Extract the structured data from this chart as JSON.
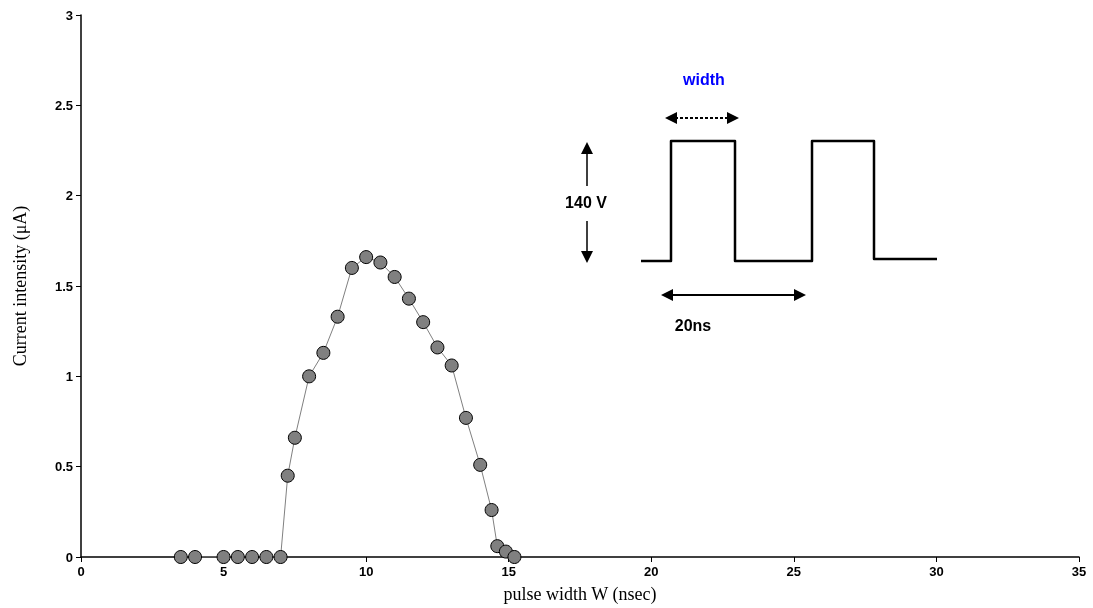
{
  "chart_data": {
    "type": "line",
    "xlabel": "pulse width W (nsec)",
    "ylabel": "Current intensity (μA)",
    "x": [
      3.5,
      4,
      5,
      5.5,
      6,
      6.5,
      7,
      7.25,
      7.5,
      8,
      8.5,
      9,
      9.5,
      10,
      10.5,
      11,
      11.5,
      12,
      12.5,
      13,
      13.5,
      14,
      14.4,
      14.6,
      14.9,
      15.2
    ],
    "series": [
      {
        "color": "#808080",
        "values": [
          0,
          0,
          0,
          0,
          0,
          0,
          0,
          0.45,
          0.66,
          1.0,
          1.13,
          1.33,
          1.6,
          1.66,
          1.63,
          1.55,
          1.43,
          1.3,
          1.16,
          1.06,
          0.77,
          0.51,
          0.26,
          0.06,
          0.03,
          0
        ]
      }
    ],
    "xlim": [
      0,
      35
    ],
    "xticks": [
      0,
      5,
      10,
      15,
      20,
      25,
      30,
      35
    ],
    "ylim": [
      0,
      3
    ],
    "yticks": [
      0,
      0.5,
      1,
      1.5,
      2,
      2.5,
      3
    ],
    "marker": "circle",
    "line_style": "solid",
    "annotations": [
      "width",
      "140 V",
      "20ns"
    ]
  }
}
